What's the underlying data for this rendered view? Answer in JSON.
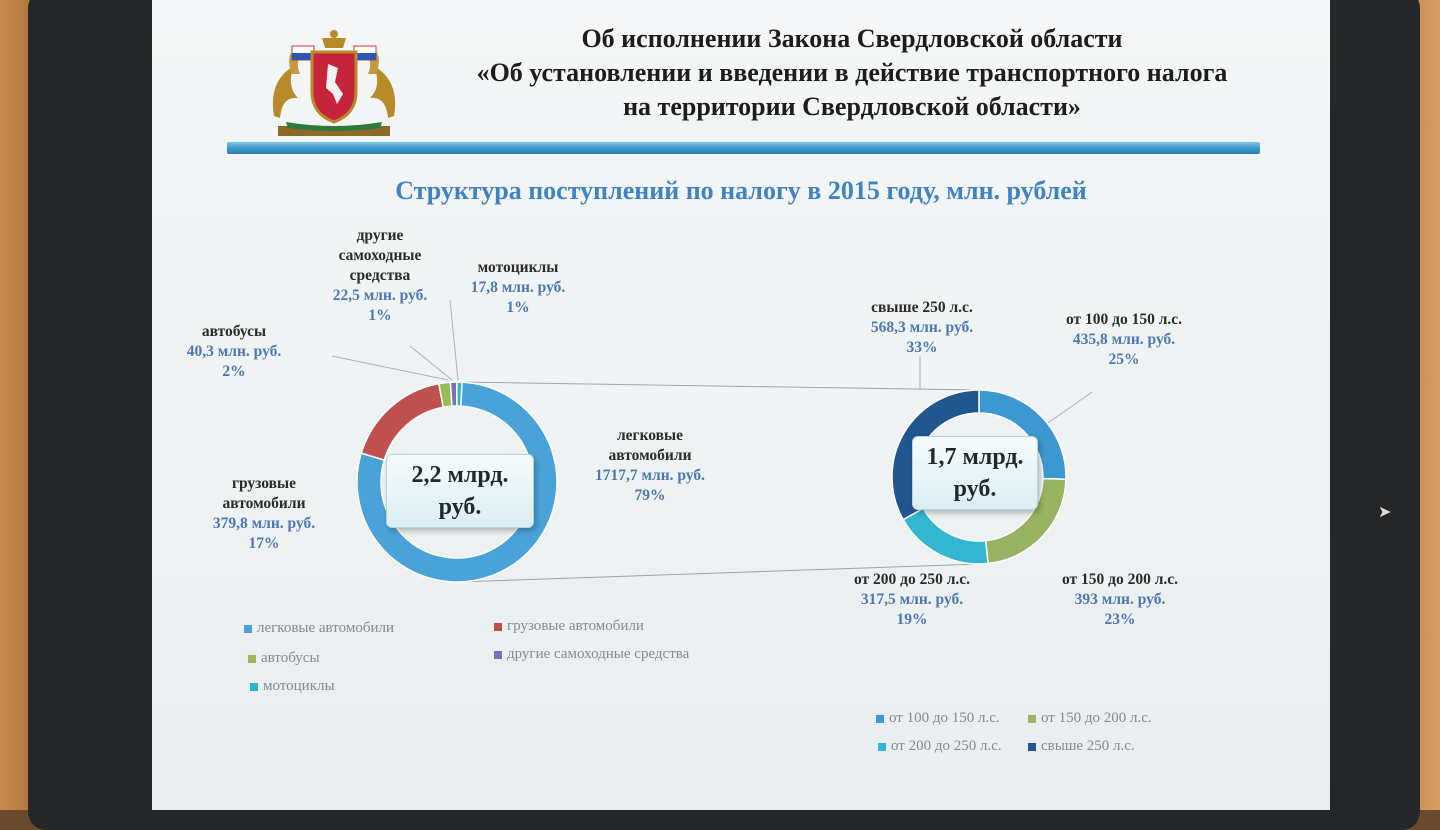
{
  "title": {
    "lines": [
      "Об исполнении Закона Свердловской области",
      "«Об установлении и введении в действие транспортного налога",
      "на территории Свердловской области»"
    ]
  },
  "emblem_icon": "coat-of-arms-sverdlovsk-icon",
  "colors": {
    "accent_blue": "#3f83c5",
    "value_blue": "#4c77b3",
    "rule_blue": "#3a96c8"
  },
  "chart_data": [
    {
      "type": "pie",
      "donut": true,
      "title": "Структура поступлений по налогу в 2015 году, млн. рублей",
      "center_label": [
        "2,2 млрд.",
        "руб."
      ],
      "slices": [
        {
          "name": "легковые автомобили",
          "label_lines": [
            "легковые",
            "автомобили"
          ],
          "value": 1717.7,
          "value_text": "1717,7 млн. руб.",
          "percent": "79%",
          "color": "#4aa3d8"
        },
        {
          "name": "грузовые автомобили",
          "label_lines": [
            "грузовые",
            "автомобили"
          ],
          "value": 379.8,
          "value_text": "379,8 млн. руб.",
          "percent": "17%",
          "color": "#c0504d"
        },
        {
          "name": "автобусы",
          "label_lines": [
            "автобусы"
          ],
          "value": 40.3,
          "value_text": "40,3 млн. руб.",
          "percent": "2%",
          "color": "#9bbb59"
        },
        {
          "name": "другие самоходные средства",
          "label_lines": [
            "другие",
            "самоходные",
            "средства"
          ],
          "value": 22.5,
          "value_text": "22,5 млн. руб.",
          "percent": "1%",
          "color": "#7a6fb8"
        },
        {
          "name": "мотоциклы",
          "label_lines": [
            "мотоциклы"
          ],
          "value": 17.8,
          "value_text": "17,8 млн. руб.",
          "percent": "1%",
          "color": "#2fb5c9"
        }
      ],
      "legend": [
        "легковые автомобили",
        "грузовые автомобили",
        "автобусы",
        "другие самоходные средства",
        "мотоциклы"
      ],
      "legend_position": "bottom"
    },
    {
      "type": "pie",
      "donut": true,
      "center_label": [
        "1,7 млрд.",
        "руб."
      ],
      "slices": [
        {
          "name": "от 100 до 150 л.с.",
          "value": 435.8,
          "value_text": "435,8 млн. руб.",
          "percent": "25%",
          "color": "#3c98d0"
        },
        {
          "name": "от 150 до 200 л.с.",
          "value": 393,
          "value_text": "393 млн. руб.",
          "percent": "23%",
          "color": "#98b361"
        },
        {
          "name": "от 200 до 250 л.с.",
          "value": 317.5,
          "value_text": "317,5 млн. руб.",
          "percent": "19%",
          "color": "#33b7d0"
        },
        {
          "name": "свыше 250 л.с.",
          "value": 568.3,
          "value_text": "568,3 млн. руб.",
          "percent": "33%",
          "color": "#21568f"
        }
      ],
      "legend": [
        "от 100 до 150 л.с.",
        "от 150 до 200 л.с.",
        "от 200 до 250 л.с.",
        "свыше 250 л.с."
      ],
      "legend_position": "bottom"
    }
  ]
}
